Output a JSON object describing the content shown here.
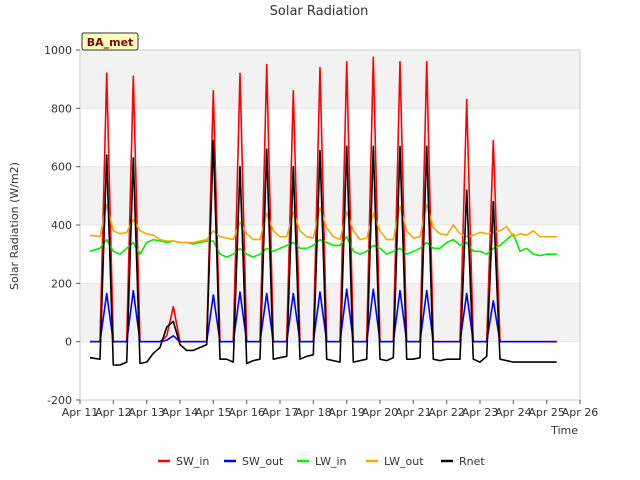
{
  "chart_data": {
    "type": "line",
    "title": "Solar Radiation",
    "xlabel": "Time",
    "ylabel": "Solar Radiation (W/m2)",
    "badge": "BA_met",
    "ylim": [
      -200,
      1000
    ],
    "yticks": [
      -200,
      0,
      200,
      400,
      600,
      800,
      1000
    ],
    "xlim": [
      11,
      26
    ],
    "xticks": [
      {
        "v": 11,
        "label": "Apr 11"
      },
      {
        "v": 12,
        "label": "Apr 12"
      },
      {
        "v": 13,
        "label": "Apr 13"
      },
      {
        "v": 14,
        "label": "Apr 14"
      },
      {
        "v": 15,
        "label": "Apr 15"
      },
      {
        "v": 16,
        "label": "Apr 16"
      },
      {
        "v": 17,
        "label": "Apr 17"
      },
      {
        "v": 18,
        "label": "Apr 18"
      },
      {
        "v": 19,
        "label": "Apr 19"
      },
      {
        "v": 20,
        "label": "Apr 20"
      },
      {
        "v": 21,
        "label": "Apr 21"
      },
      {
        "v": 22,
        "label": "Apr 22"
      },
      {
        "v": 23,
        "label": "Apr 23"
      },
      {
        "v": 24,
        "label": "Apr 24"
      },
      {
        "v": 25,
        "label": "Apr 25"
      },
      {
        "v": 26,
        "label": "Apr 26"
      }
    ],
    "grid": "horizontal bands",
    "legend": "bottom",
    "series": [
      {
        "name": "SW_in",
        "color": "#ff0000",
        "x": [
          11.3,
          11.6,
          11.8,
          12.0,
          12.2,
          12.4,
          12.6,
          12.8,
          13.0,
          13.2,
          13.4,
          13.6,
          13.8,
          14.0,
          14.2,
          14.4,
          14.6,
          14.8,
          15.0,
          15.2,
          15.4,
          15.6,
          15.8,
          16.0,
          16.2,
          16.4,
          16.6,
          16.8,
          17.0,
          17.2,
          17.4,
          17.6,
          17.8,
          18.0,
          18.2,
          18.4,
          18.6,
          18.8,
          19.0,
          19.2,
          19.4,
          19.6,
          19.8,
          20.0,
          20.2,
          20.4,
          20.6,
          20.8,
          21.0,
          21.2,
          21.4,
          21.6,
          21.8,
          22.0,
          22.2,
          22.4,
          22.6,
          22.8,
          23.0,
          23.2,
          23.4,
          23.6,
          23.8,
          24.0,
          24.2,
          24.4,
          24.6,
          24.8,
          25.0,
          25.3
        ],
        "y": [
          0,
          0,
          920,
          0,
          0,
          0,
          910,
          0,
          0,
          0,
          0,
          20,
          120,
          0,
          0,
          0,
          0,
          0,
          860,
          0,
          0,
          0,
          920,
          0,
          0,
          0,
          950,
          0,
          0,
          0,
          860,
          0,
          0,
          0,
          940,
          0,
          0,
          0,
          960,
          0,
          0,
          0,
          975,
          0,
          0,
          0,
          960,
          0,
          0,
          0,
          960,
          0,
          0,
          0,
          0,
          0,
          830,
          0,
          0,
          0,
          690,
          0,
          0,
          0,
          0,
          0,
          0,
          0,
          0,
          0
        ]
      },
      {
        "name": "SW_out",
        "color": "#0000ff",
        "x": [
          11.3,
          11.6,
          11.8,
          12.0,
          12.2,
          12.4,
          12.6,
          12.8,
          13.0,
          13.2,
          13.4,
          13.6,
          13.8,
          14.0,
          14.2,
          14.4,
          14.6,
          14.8,
          15.0,
          15.2,
          15.4,
          15.6,
          15.8,
          16.0,
          16.2,
          16.4,
          16.6,
          16.8,
          17.0,
          17.2,
          17.4,
          17.6,
          17.8,
          18.0,
          18.2,
          18.4,
          18.6,
          18.8,
          19.0,
          19.2,
          19.4,
          19.6,
          19.8,
          20.0,
          20.2,
          20.4,
          20.6,
          20.8,
          21.0,
          21.2,
          21.4,
          21.6,
          21.8,
          22.0,
          22.2,
          22.4,
          22.6,
          22.8,
          23.0,
          23.2,
          23.4,
          23.6,
          23.8,
          24.0,
          24.2,
          24.4,
          24.6,
          24.8,
          25.0,
          25.3
        ],
        "y": [
          0,
          0,
          165,
          0,
          0,
          0,
          175,
          0,
          0,
          0,
          0,
          5,
          20,
          0,
          0,
          0,
          0,
          0,
          160,
          0,
          0,
          0,
          170,
          0,
          0,
          0,
          165,
          0,
          0,
          0,
          165,
          0,
          0,
          0,
          170,
          0,
          0,
          0,
          180,
          0,
          0,
          0,
          180,
          0,
          0,
          0,
          175,
          0,
          0,
          0,
          175,
          0,
          0,
          0,
          0,
          0,
          165,
          0,
          0,
          0,
          140,
          0,
          0,
          0,
          0,
          0,
          0,
          0,
          0,
          0
        ]
      },
      {
        "name": "LW_in",
        "color": "#00ee00",
        "x": [
          11.3,
          11.6,
          11.8,
          12.0,
          12.2,
          12.4,
          12.6,
          12.8,
          13.0,
          13.2,
          13.4,
          13.6,
          13.8,
          14.0,
          14.2,
          14.4,
          14.6,
          14.8,
          15.0,
          15.2,
          15.4,
          15.6,
          15.8,
          16.0,
          16.2,
          16.4,
          16.6,
          16.8,
          17.0,
          17.2,
          17.4,
          17.6,
          17.8,
          18.0,
          18.2,
          18.4,
          18.6,
          18.8,
          19.0,
          19.2,
          19.4,
          19.6,
          19.8,
          20.0,
          20.2,
          20.4,
          20.6,
          20.8,
          21.0,
          21.2,
          21.4,
          21.6,
          21.8,
          22.0,
          22.2,
          22.4,
          22.6,
          22.8,
          23.0,
          23.2,
          23.4,
          23.6,
          23.8,
          24.0,
          24.2,
          24.4,
          24.6,
          24.8,
          25.0,
          25.3
        ],
        "y": [
          310,
          320,
          350,
          310,
          300,
          320,
          340,
          300,
          340,
          350,
          345,
          340,
          345,
          340,
          340,
          335,
          340,
          345,
          345,
          300,
          290,
          300,
          320,
          300,
          290,
          300,
          320,
          310,
          320,
          330,
          340,
          320,
          320,
          330,
          350,
          340,
          330,
          330,
          360,
          310,
          300,
          310,
          330,
          320,
          300,
          310,
          320,
          300,
          310,
          320,
          340,
          320,
          320,
          340,
          350,
          330,
          340,
          310,
          310,
          300,
          320,
          330,
          350,
          370,
          310,
          320,
          300,
          295,
          300,
          300
        ]
      },
      {
        "name": "LW_out",
        "color": "#ffa500",
        "x": [
          11.3,
          11.6,
          11.8,
          12.0,
          12.2,
          12.4,
          12.6,
          12.8,
          13.0,
          13.2,
          13.4,
          13.6,
          13.8,
          14.0,
          14.2,
          14.4,
          14.6,
          14.8,
          15.0,
          15.2,
          15.4,
          15.6,
          15.8,
          16.0,
          16.2,
          16.4,
          16.6,
          16.8,
          17.0,
          17.2,
          17.4,
          17.6,
          17.8,
          18.0,
          18.2,
          18.4,
          18.6,
          18.8,
          19.0,
          19.2,
          19.4,
          19.6,
          19.8,
          20.0,
          20.2,
          20.4,
          20.6,
          20.8,
          21.0,
          21.2,
          21.4,
          21.6,
          21.8,
          22.0,
          22.2,
          22.4,
          22.6,
          22.8,
          23.0,
          23.2,
          23.4,
          23.6,
          23.8,
          24.0,
          24.2,
          24.4,
          24.6,
          24.8,
          25.0,
          25.3
        ],
        "y": [
          365,
          360,
          470,
          380,
          370,
          375,
          420,
          380,
          370,
          365,
          350,
          345,
          345,
          340,
          340,
          340,
          345,
          350,
          380,
          360,
          355,
          350,
          410,
          370,
          350,
          350,
          440,
          380,
          360,
          360,
          445,
          380,
          360,
          355,
          460,
          390,
          360,
          350,
          445,
          380,
          350,
          355,
          440,
          380,
          350,
          350,
          465,
          380,
          355,
          360,
          470,
          390,
          370,
          365,
          400,
          370,
          360,
          365,
          375,
          370,
          375,
          380,
          395,
          360,
          370,
          365,
          380,
          360,
          360,
          360
        ]
      },
      {
        "name": "Rnet",
        "color": "#000000",
        "x": [
          11.3,
          11.6,
          11.8,
          12.0,
          12.2,
          12.4,
          12.6,
          12.8,
          13.0,
          13.2,
          13.4,
          13.6,
          13.8,
          14.0,
          14.2,
          14.4,
          14.6,
          14.8,
          15.0,
          15.2,
          15.4,
          15.6,
          15.8,
          16.0,
          16.2,
          16.4,
          16.6,
          16.8,
          17.0,
          17.2,
          17.4,
          17.6,
          17.8,
          18.0,
          18.2,
          18.4,
          18.6,
          18.8,
          19.0,
          19.2,
          19.4,
          19.6,
          19.8,
          20.0,
          20.2,
          20.4,
          20.6,
          20.8,
          21.0,
          21.2,
          21.4,
          21.6,
          21.8,
          22.0,
          22.2,
          22.4,
          22.6,
          22.8,
          23.0,
          23.2,
          23.4,
          23.6,
          23.8,
          24.0,
          24.2,
          24.4,
          24.6,
          24.8,
          25.0,
          25.3
        ],
        "y": [
          -55,
          -60,
          640,
          -80,
          -80,
          -70,
          630,
          -75,
          -70,
          -40,
          -20,
          50,
          70,
          -10,
          -30,
          -30,
          -20,
          -10,
          690,
          -60,
          -60,
          -70,
          600,
          -75,
          -65,
          -60,
          660,
          -60,
          -55,
          -50,
          600,
          -60,
          -50,
          -45,
          655,
          -60,
          -65,
          -70,
          670,
          -70,
          -65,
          -60,
          670,
          -60,
          -65,
          -55,
          670,
          -60,
          -60,
          -55,
          670,
          -60,
          -65,
          -60,
          -60,
          -60,
          520,
          -60,
          -70,
          -50,
          480,
          -60,
          -65,
          -70,
          -70,
          -70,
          -70,
          -70,
          -70,
          -70
        ]
      }
    ]
  }
}
